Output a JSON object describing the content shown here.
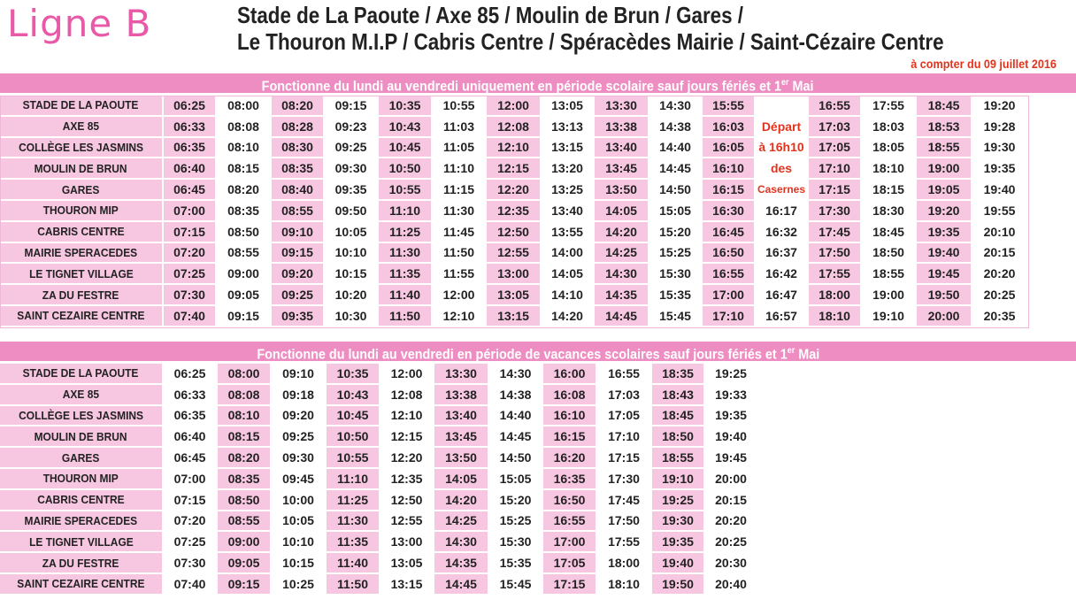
{
  "header": {
    "logo": "Ligne B",
    "title_line1": "Stade de La Paoute / Axe 85 / Moulin de Brun / Gares /",
    "title_line2": "Le Thouron M.I.P / Cabris Centre / Spéracèdes Mairie / Saint-Cézaire Centre",
    "validity": "à compter du 09 juillet 2016"
  },
  "colors": {
    "accent": "#e85aa8",
    "header_band": "#ee8dc2",
    "shade": "#f7c6e1",
    "note": "#e0341e"
  },
  "stops": [
    "STADE DE LA PAOUTE",
    "AXE 85",
    "COLLÈGE LES JASMINS",
    "MOULIN DE BRUN",
    "GARES",
    "THOURON MIP",
    "CABRIS CENTRE",
    "MAIRIE SPERACEDES",
    "LE TIGNET VILLAGE",
    "ZA DU FESTRE",
    "SAINT CEZAIRE CENTRE"
  ],
  "school": {
    "title_before": "Fonctionne du lundi au vendredi uniquement en période scolaire sauf jours fériés et 1",
    "title_sup": "er",
    "title_after": " Mai",
    "note": [
      "Départ",
      "à 16h10",
      "des",
      "Casernes"
    ],
    "rows": [
      [
        "06:25",
        "08:00",
        "08:20",
        "09:15",
        "10:35",
        "10:55",
        "12:00",
        "13:05",
        "13:30",
        "14:30",
        "15:55",
        "",
        "16:55",
        "17:55",
        "18:45",
        "19:20"
      ],
      [
        "06:33",
        "08:08",
        "08:28",
        "09:23",
        "10:43",
        "11:03",
        "12:08",
        "13:13",
        "13:38",
        "14:38",
        "16:03",
        "",
        "17:03",
        "18:03",
        "18:53",
        "19:28"
      ],
      [
        "06:35",
        "08:10",
        "08:30",
        "09:25",
        "10:45",
        "11:05",
        "12:10",
        "13:15",
        "13:40",
        "14:40",
        "16:05",
        "",
        "17:05",
        "18:05",
        "18:55",
        "19:30"
      ],
      [
        "06:40",
        "08:15",
        "08:35",
        "09:30",
        "10:50",
        "11:10",
        "12:15",
        "13:20",
        "13:45",
        "14:45",
        "16:10",
        "",
        "17:10",
        "18:10",
        "19:00",
        "19:35"
      ],
      [
        "06:45",
        "08:20",
        "08:40",
        "09:35",
        "10:55",
        "11:15",
        "12:20",
        "13:25",
        "13:50",
        "14:50",
        "16:15",
        "",
        "17:15",
        "18:15",
        "19:05",
        "19:40"
      ],
      [
        "07:00",
        "08:35",
        "08:55",
        "09:50",
        "11:10",
        "11:30",
        "12:35",
        "13:40",
        "14:05",
        "15:05",
        "16:30",
        "16:17",
        "17:30",
        "18:30",
        "19:20",
        "19:55"
      ],
      [
        "07:15",
        "08:50",
        "09:10",
        "10:05",
        "11:25",
        "11:45",
        "12:50",
        "13:55",
        "14:20",
        "15:20",
        "16:45",
        "16:32",
        "17:45",
        "18:45",
        "19:35",
        "20:10"
      ],
      [
        "07:20",
        "08:55",
        "09:15",
        "10:10",
        "11:30",
        "11:50",
        "12:55",
        "14:00",
        "14:25",
        "15:25",
        "16:50",
        "16:37",
        "17:50",
        "18:50",
        "19:40",
        "20:15"
      ],
      [
        "07:25",
        "09:00",
        "09:20",
        "10:15",
        "11:35",
        "11:55",
        "13:00",
        "14:05",
        "14:30",
        "15:30",
        "16:55",
        "16:42",
        "17:55",
        "18:55",
        "19:45",
        "20:20"
      ],
      [
        "07:30",
        "09:05",
        "09:25",
        "10:20",
        "11:40",
        "12:00",
        "13:05",
        "14:10",
        "14:35",
        "15:35",
        "17:00",
        "16:47",
        "18:00",
        "19:00",
        "19:50",
        "20:25"
      ],
      [
        "07:40",
        "09:15",
        "09:35",
        "10:30",
        "11:50",
        "12:10",
        "13:15",
        "14:20",
        "14:45",
        "15:45",
        "17:10",
        "16:57",
        "18:10",
        "19:10",
        "20:00",
        "20:35"
      ]
    ]
  },
  "holidays": {
    "title_before": "Fonctionne du lundi au vendredi en période de vacances scolaires sauf jours fériés et 1",
    "title_sup": "er",
    "title_after": " Mai",
    "rows": [
      [
        "06:25",
        "08:00",
        "09:10",
        "10:35",
        "12:00",
        "13:30",
        "14:30",
        "16:00",
        "16:55",
        "18:35",
        "19:25"
      ],
      [
        "06:33",
        "08:08",
        "09:18",
        "10:43",
        "12:08",
        "13:38",
        "14:38",
        "16:08",
        "17:03",
        "18:43",
        "19:33"
      ],
      [
        "06:35",
        "08:10",
        "09:20",
        "10:45",
        "12:10",
        "13:40",
        "14:40",
        "16:10",
        "17:05",
        "18:45",
        "19:35"
      ],
      [
        "06:40",
        "08:15",
        "09:25",
        "10:50",
        "12:15",
        "13:45",
        "14:45",
        "16:15",
        "17:10",
        "18:50",
        "19:40"
      ],
      [
        "06:45",
        "08:20",
        "09:30",
        "10:55",
        "12:20",
        "13:50",
        "14:50",
        "16:20",
        "17:15",
        "18:55",
        "19:45"
      ],
      [
        "07:00",
        "08:35",
        "09:45",
        "11:10",
        "12:35",
        "14:05",
        "15:05",
        "16:35",
        "17:30",
        "19:10",
        "20:00"
      ],
      [
        "07:15",
        "08:50",
        "10:00",
        "11:25",
        "12:50",
        "14:20",
        "15:20",
        "16:50",
        "17:45",
        "19:25",
        "20:15"
      ],
      [
        "07:20",
        "08:55",
        "10:05",
        "11:30",
        "12:55",
        "14:25",
        "15:25",
        "16:55",
        "17:50",
        "19:30",
        "20:20"
      ],
      [
        "07:25",
        "09:00",
        "10:10",
        "11:35",
        "13:00",
        "14:30",
        "15:30",
        "17:00",
        "17:55",
        "19:35",
        "20:25"
      ],
      [
        "07:30",
        "09:05",
        "10:15",
        "11:40",
        "13:05",
        "14:35",
        "15:35",
        "17:05",
        "18:00",
        "19:40",
        "20:30"
      ],
      [
        "07:40",
        "09:15",
        "10:25",
        "11:50",
        "13:15",
        "14:45",
        "15:45",
        "17:15",
        "18:10",
        "19:50",
        "20:40"
      ]
    ]
  }
}
